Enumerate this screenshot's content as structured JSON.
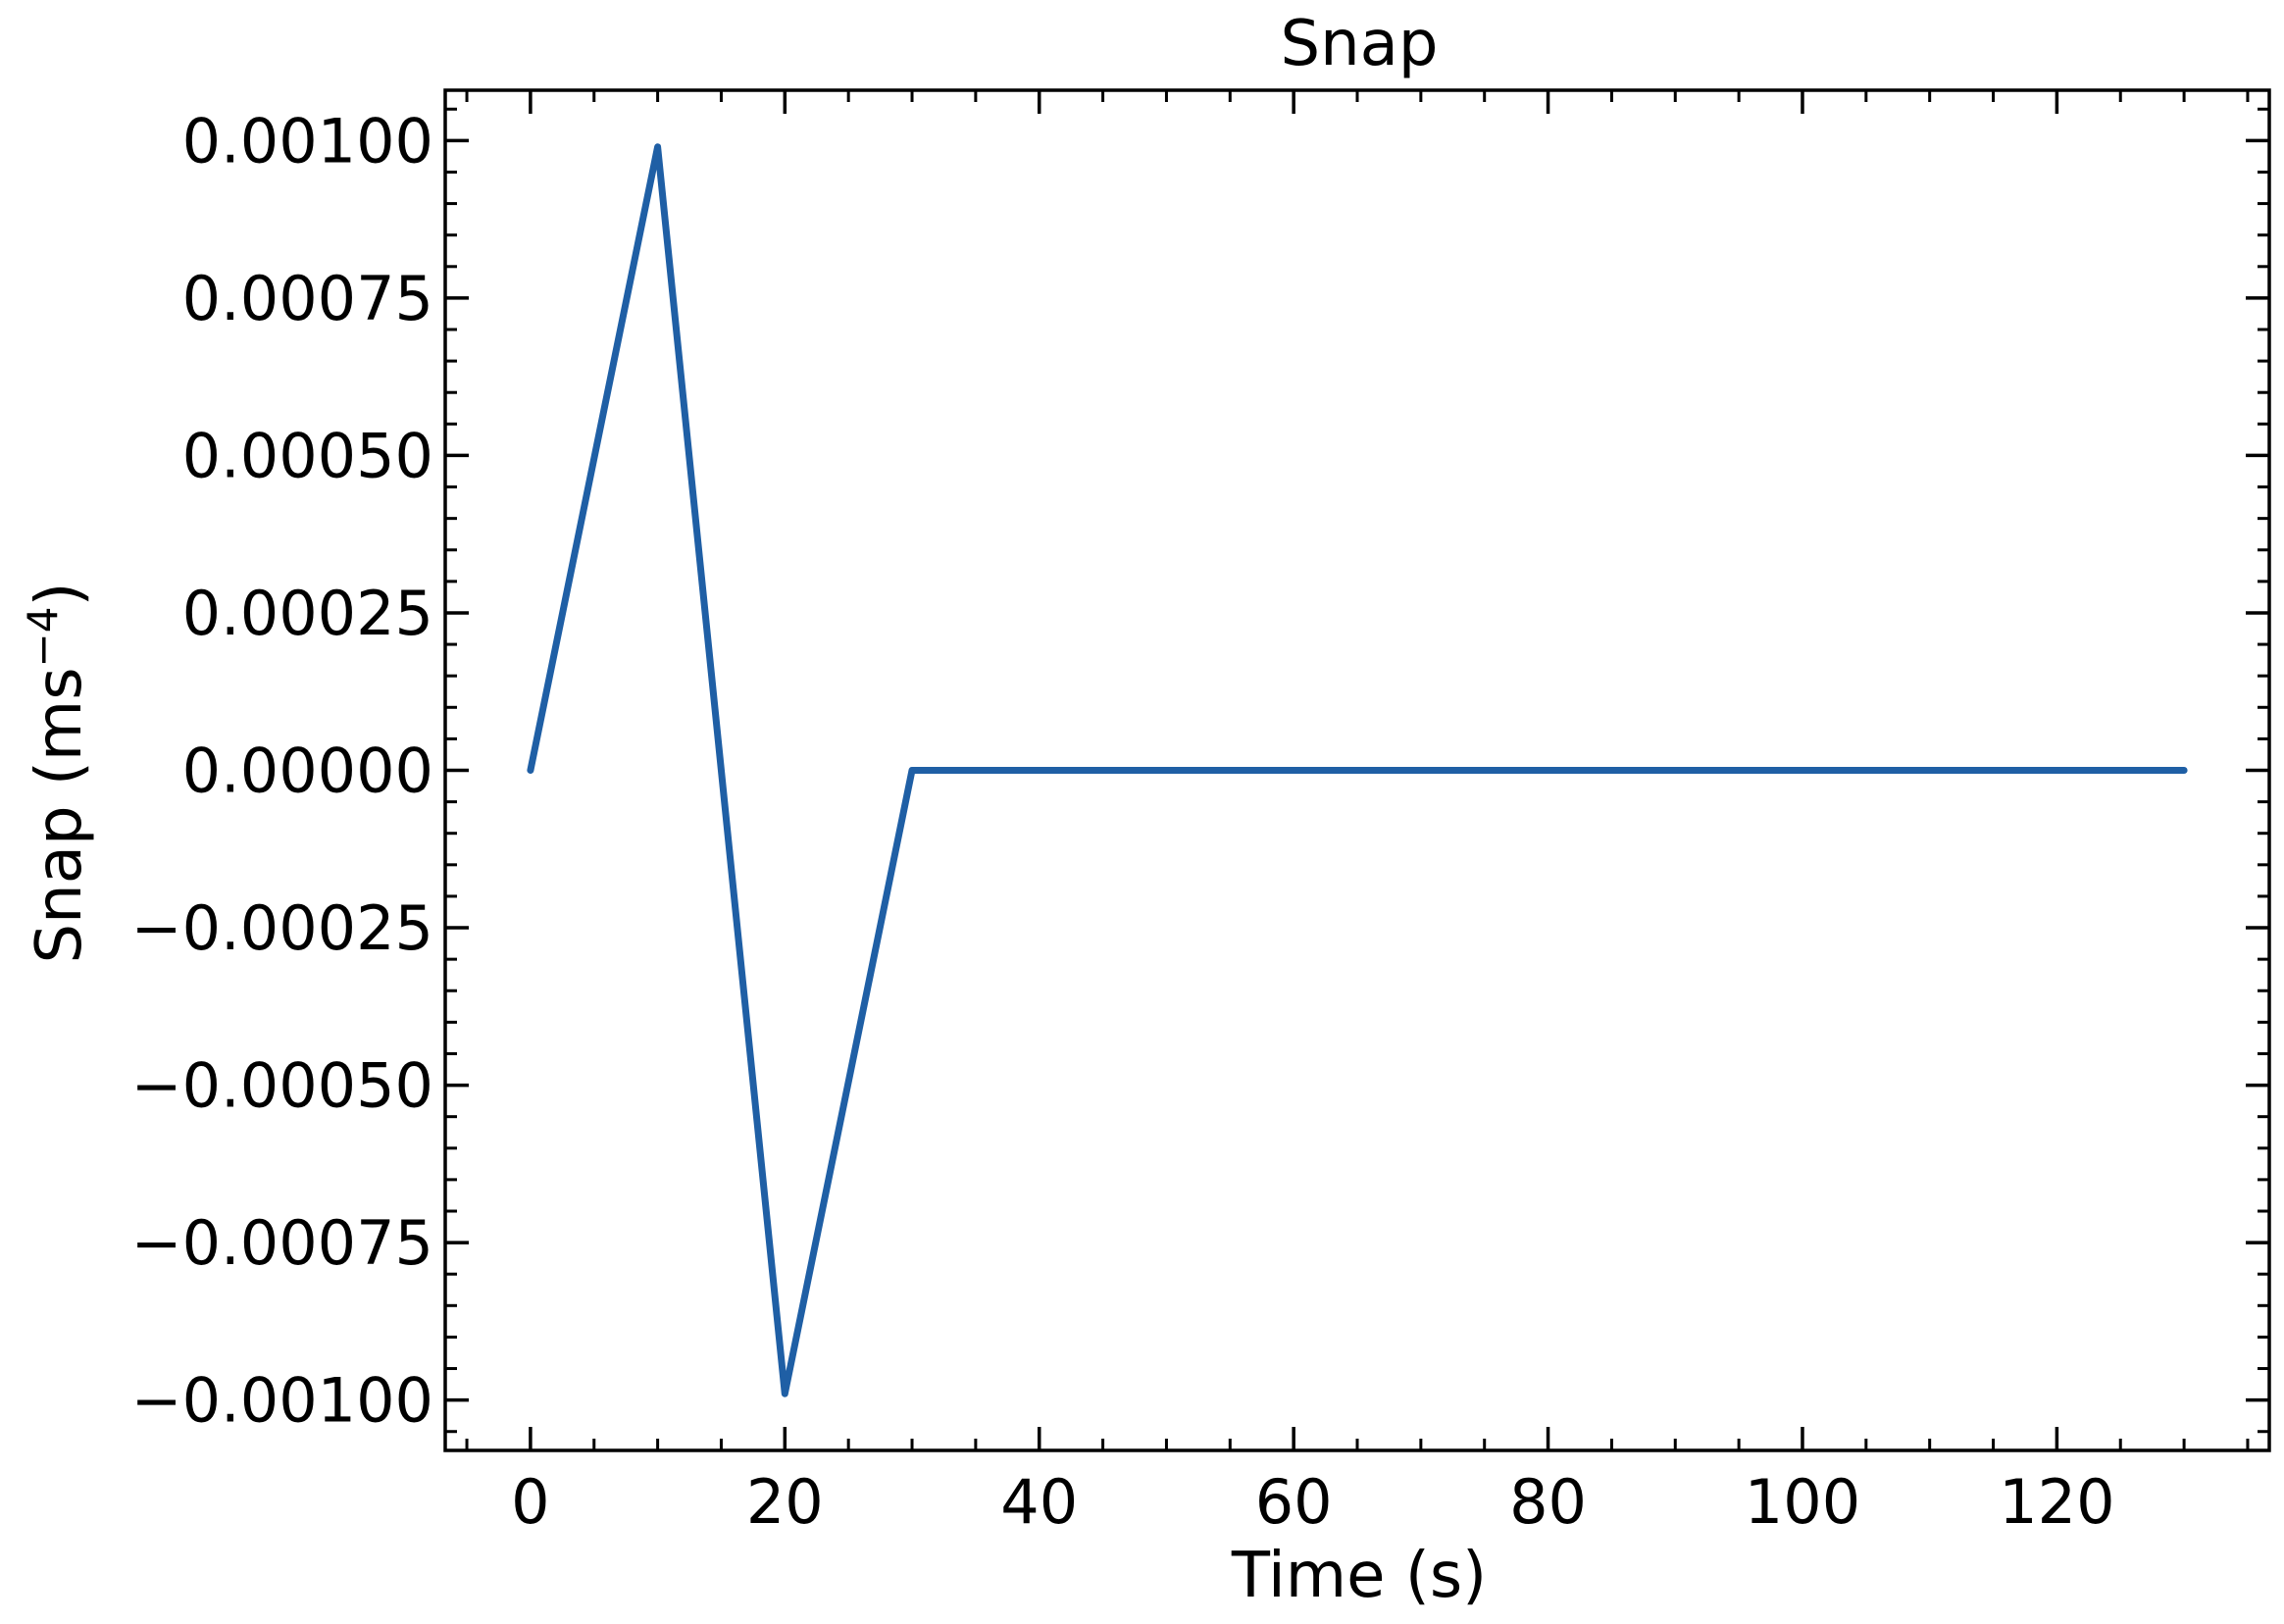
{
  "chart_data": {
    "type": "line",
    "title": "Snap",
    "xlabel": "Time (s)",
    "ylabel_main": "Snap (ms",
    "ylabel_sup": "−4",
    "ylabel_close": ")",
    "xlim": [
      -6.7,
      136.7
    ],
    "ylim": [
      -0.00108,
      0.00108
    ],
    "x_ticks": [
      0,
      20,
      40,
      60,
      80,
      100,
      120
    ],
    "x_tick_labels": [
      "0",
      "20",
      "40",
      "60",
      "80",
      "100",
      "120"
    ],
    "x_minor_step": 5,
    "y_ticks": [
      -0.001,
      -0.00075,
      -0.0005,
      -0.00025,
      0,
      0.00025,
      0.0005,
      0.00075,
      0.001
    ],
    "y_tick_labels": [
      "−0.00100",
      "−0.00075",
      "−0.00050",
      "−0.00025",
      "0.00000",
      "0.00025",
      "0.00050",
      "0.00075",
      "0.00100"
    ],
    "y_minor_step": 5e-05,
    "grid": false,
    "tick_direction": "in",
    "ticks_on_all_sides": true,
    "series": [
      {
        "color": "#1f5fa5",
        "x": [
          0,
          10,
          20,
          30,
          130
        ],
        "y": [
          0,
          0.00099,
          -0.00099,
          0,
          0
        ]
      }
    ]
  }
}
